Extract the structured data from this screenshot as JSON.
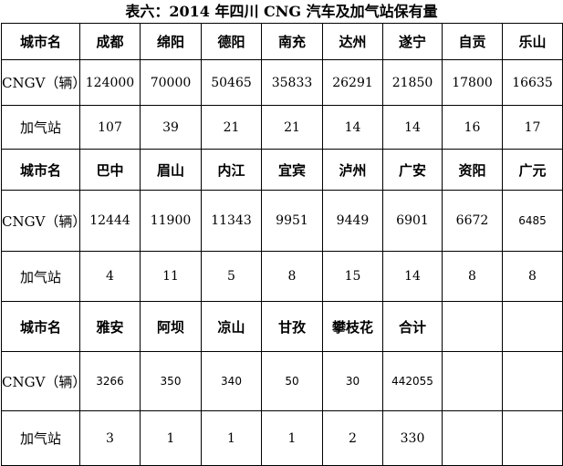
{
  "title": "表六：2014 年四川 CNG 汽车及加气站保有量",
  "labels": {
    "city": "城市名",
    "cngv": "CNGV（辆）",
    "stations": "加气站"
  },
  "groups": [
    {
      "cities": [
        "成都",
        "绵阳",
        "德阳",
        "南充",
        "达州",
        "遂宁",
        "自贡",
        "乐山"
      ],
      "cngv": [
        "124000",
        "70000",
        "50465",
        "35833",
        "26291",
        "21850",
        "17800",
        "16635"
      ],
      "stations": [
        "107",
        "39",
        "21",
        "21",
        "14",
        "14",
        "16",
        "17"
      ]
    },
    {
      "cities": [
        "巴中",
        "眉山",
        "内江",
        "宜宾",
        "泸州",
        "广安",
        "资阳",
        "广元"
      ],
      "cngv": [
        "12444",
        "11900",
        "11343",
        "9951",
        "9449",
        "6901",
        "6672",
        "6485"
      ],
      "stations": [
        "4",
        "11",
        "5",
        "8",
        "15",
        "14",
        "8",
        "8"
      ]
    },
    {
      "cities": [
        "雅安",
        "阿坝",
        "凉山",
        "甘孜",
        "攀枝花",
        "合计",
        "",
        ""
      ],
      "cngv": [
        "3266",
        "350",
        "340",
        "50",
        "30",
        "442055",
        "",
        ""
      ],
      "stations": [
        "3",
        "1",
        "1",
        "1",
        "2",
        "330",
        "",
        ""
      ]
    }
  ]
}
